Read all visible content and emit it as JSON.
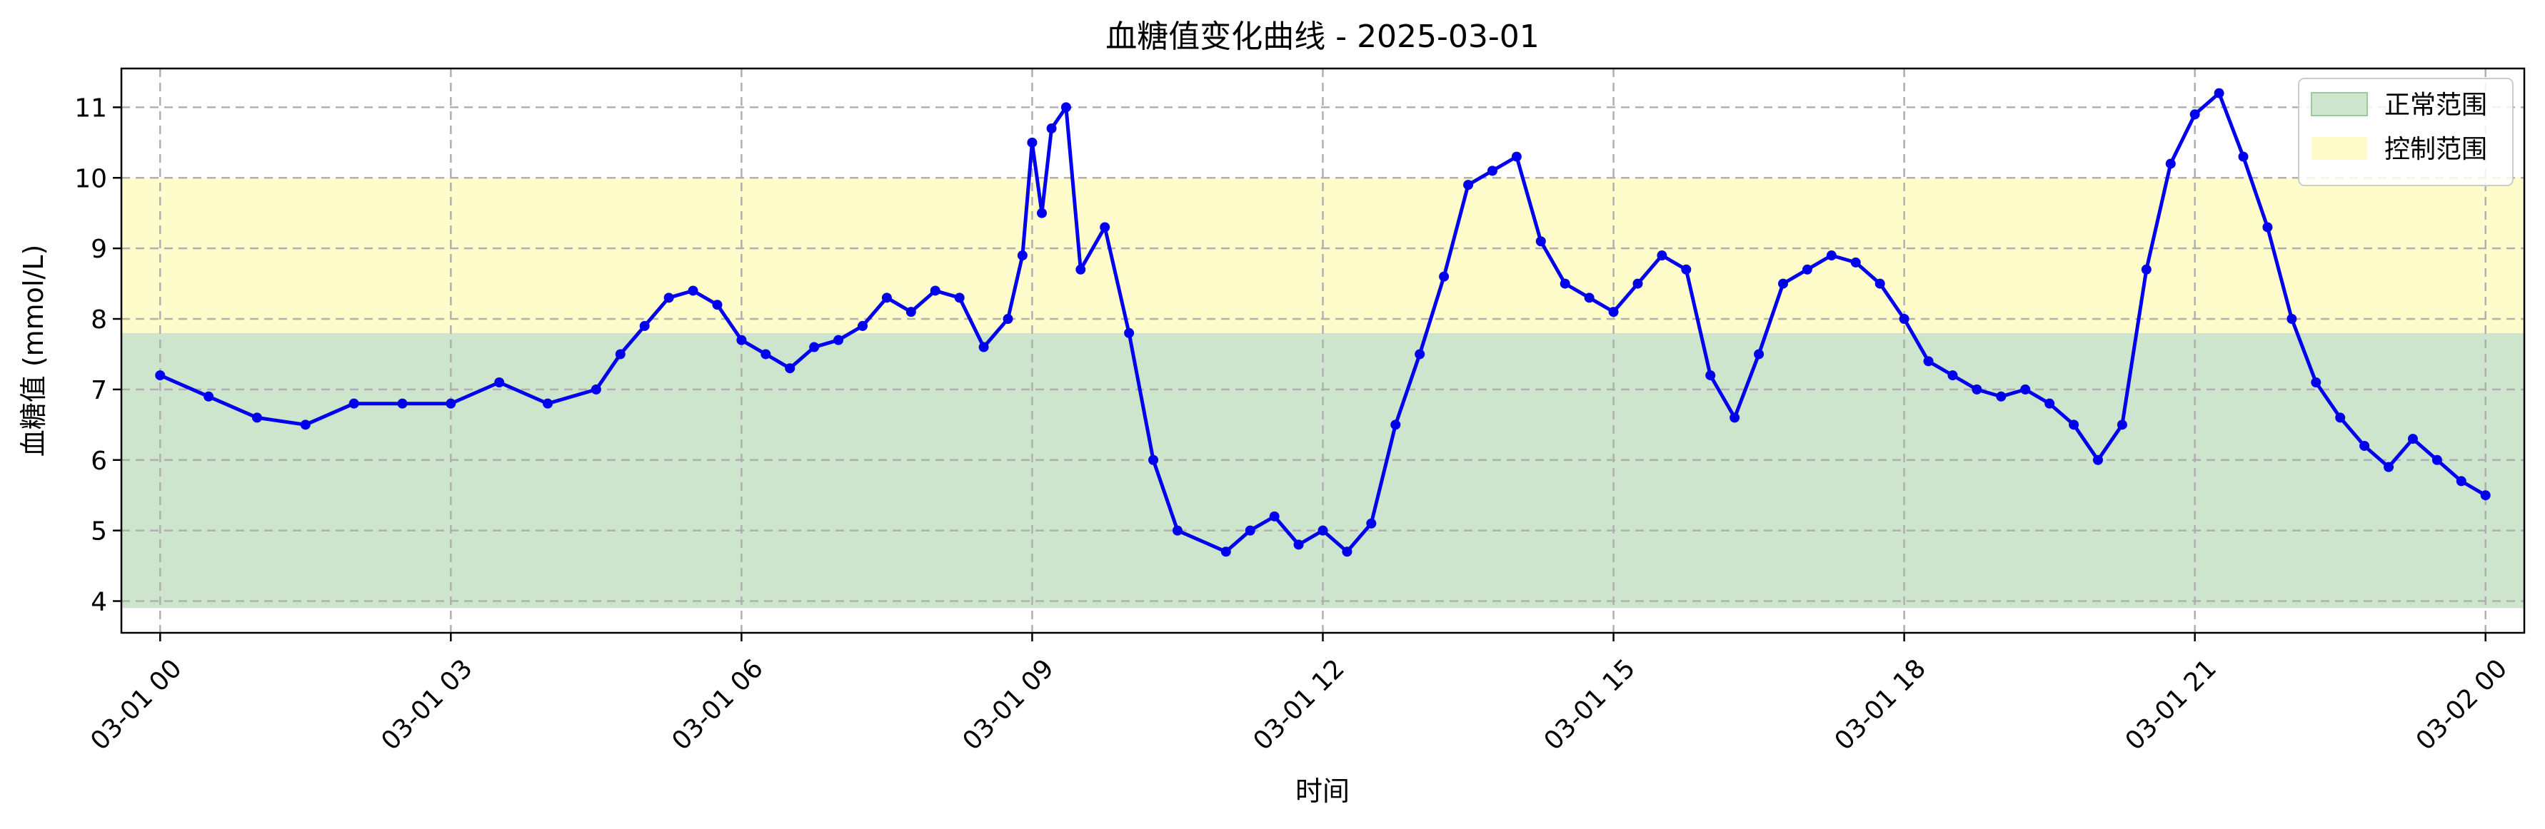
{
  "chart_data": {
    "type": "line",
    "title": "血糖值变化曲线 - 2025-03-01",
    "xlabel": "时间",
    "ylabel": "血糖值 (mmol/L)",
    "xlim": [
      -0.4,
      24.4
    ],
    "ylim": [
      3.55,
      11.55
    ],
    "x_ticks": [
      {
        "value": 0,
        "label": "03-01 00"
      },
      {
        "value": 3,
        "label": "03-01 03"
      },
      {
        "value": 6,
        "label": "03-01 06"
      },
      {
        "value": 9,
        "label": "03-01 09"
      },
      {
        "value": 12,
        "label": "03-01 12"
      },
      {
        "value": 15,
        "label": "03-01 15"
      },
      {
        "value": 18,
        "label": "03-01 18"
      },
      {
        "value": 21,
        "label": "03-01 21"
      },
      {
        "value": 24,
        "label": "03-02 00"
      }
    ],
    "y_ticks": [
      4,
      5,
      6,
      7,
      8,
      9,
      10,
      11
    ],
    "grid": true,
    "legend_position": "top-right",
    "bands": [
      {
        "label": "正常范围",
        "y0": 3.9,
        "y1": 7.8,
        "color": "#cde5cd"
      },
      {
        "label": "控制范围",
        "y0": 7.8,
        "y1": 10.0,
        "color": "#fffccc"
      }
    ],
    "series": [
      {
        "color": "#0000ee",
        "x": [
          0,
          0.5,
          1,
          1.5,
          2,
          2.5,
          3,
          3.5,
          4,
          4.5,
          4.75,
          5,
          5.25,
          5.5,
          5.75,
          6,
          6.25,
          6.5,
          6.75,
          7,
          7.25,
          7.5,
          7.75,
          8,
          8.25,
          8.5,
          8.75,
          8.9,
          9,
          9.1,
          9.2,
          9.35,
          9.5,
          9.75,
          10,
          10.25,
          10.5,
          11,
          11.25,
          11.5,
          11.75,
          12,
          12.25,
          12.5,
          12.75,
          13,
          13.25,
          13.5,
          13.75,
          14,
          14.25,
          14.5,
          14.75,
          15,
          15.25,
          15.5,
          15.75,
          16,
          16.25,
          16.5,
          16.75,
          17,
          17.25,
          17.5,
          17.75,
          18,
          18.25,
          18.5,
          18.75,
          19,
          19.25,
          19.5,
          19.75,
          20,
          20.25,
          20.5,
          20.75,
          21,
          21.25,
          21.5,
          21.75,
          22,
          22.25,
          22.5,
          22.75,
          23,
          23.25,
          23.5,
          23.75,
          24
        ],
        "y": [
          7.2,
          6.9,
          6.6,
          6.5,
          6.8,
          6.8,
          6.8,
          7.1,
          6.8,
          7.0,
          7.5,
          7.9,
          8.3,
          8.4,
          8.2,
          7.7,
          7.5,
          7.3,
          7.6,
          7.7,
          7.9,
          8.3,
          8.1,
          8.4,
          8.3,
          7.6,
          8.0,
          8.9,
          10.5,
          9.5,
          10.7,
          11.0,
          8.7,
          9.3,
          7.8,
          6.0,
          5.0,
          4.7,
          5.0,
          5.2,
          4.8,
          5.0,
          4.7,
          5.1,
          6.5,
          7.5,
          8.6,
          9.9,
          10.1,
          10.3,
          9.1,
          8.5,
          8.3,
          8.1,
          8.5,
          8.9,
          8.7,
          7.2,
          6.6,
          7.5,
          8.5,
          8.7,
          8.9,
          8.8,
          8.5,
          8.0,
          7.4,
          7.2,
          7.0,
          6.9,
          7.0,
          6.8,
          6.5,
          6.0,
          6.5,
          8.7,
          10.2,
          10.9,
          11.2,
          10.3,
          9.3,
          8.0,
          7.1,
          6.6,
          6.2,
          5.9,
          6.3,
          6.0,
          5.7,
          5.5
        ]
      }
    ]
  }
}
